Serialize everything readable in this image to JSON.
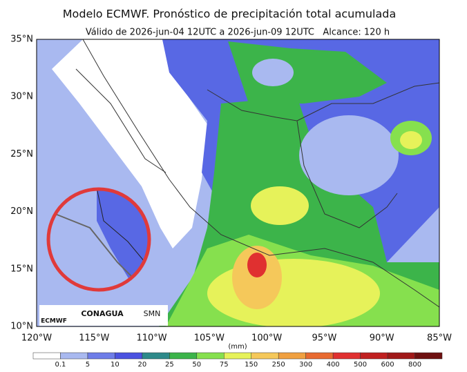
{
  "header": {
    "title": "Modelo ECMWF. Pronóstico de precipitación total acumulada",
    "subtitle": "Válido de 2026-jun-04 12UTC a 2026-jun-09 12UTC   Alcance: 120 h"
  },
  "map": {
    "lat_labels": [
      "35°N",
      "30°N",
      "25°N",
      "20°N",
      "15°N",
      "10°N"
    ],
    "lon_labels": [
      "120°W",
      "115°W",
      "110°W",
      "105°W",
      "100°W",
      "95°W",
      "90°W",
      "85°W"
    ]
  },
  "logos": {
    "ecmwf": "ECMWF",
    "conagua": "CONAGUA",
    "smn": "SMN"
  },
  "colorbar": {
    "unit": "(mm)",
    "levels": [
      0.1,
      5,
      10,
      20,
      25,
      50,
      75,
      150,
      250,
      300,
      400,
      500,
      600,
      800
    ],
    "colors": [
      "#ffffff",
      "#a9b9f0",
      "#6e7de8",
      "#4b52e0",
      "#2e8a8a",
      "#3cb44a",
      "#86e04e",
      "#e6f25a",
      "#f5c85a",
      "#f0a040",
      "#e86a30",
      "#e03030",
      "#c02020",
      "#a01818",
      "#6e1010"
    ]
  }
}
